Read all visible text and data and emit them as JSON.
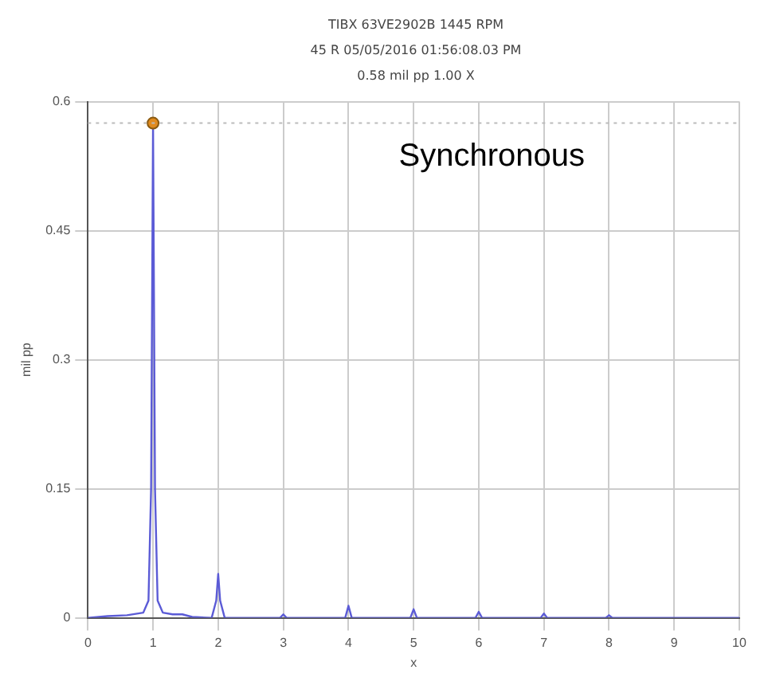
{
  "chart_data": {
    "type": "line",
    "title": "TIBX 63VE2902B  1445 RPM",
    "subtitle": "45 R  05/05/2016 01:56:08.03 PM\n0.58 mil pp 1.00 X",
    "xlabel": "x",
    "ylabel": "mil pp",
    "annotations": [
      "Synchronous"
    ],
    "series": [
      {
        "color": "#5b5bd6",
        "marker": "none",
        "x": [
          0,
          0.3,
          0.6,
          0.85,
          0.93,
          0.97,
          1,
          1.03,
          1.07,
          1.15,
          1.3,
          1.45,
          1.6,
          1.9,
          1.97,
          2,
          2.03,
          2.1,
          2.95,
          3,
          3.05,
          3.95,
          4,
          4.05,
          4.95,
          5,
          5.05,
          5.95,
          6,
          6.05,
          6.95,
          7,
          7.05,
          7.95,
          8,
          8.05,
          10
        ],
        "values": [
          0,
          0.002,
          0.003,
          0.006,
          0.02,
          0.15,
          0.575,
          0.15,
          0.02,
          0.006,
          0.004,
          0.004,
          0.001,
          0,
          0.02,
          0.051,
          0.02,
          0,
          0,
          0.004,
          0,
          0,
          0.014,
          0,
          0,
          0.01,
          0,
          0,
          0.007,
          0,
          0,
          0.005,
          0,
          0,
          0.003,
          0,
          0
        ]
      },
      {
        "type": "scatter",
        "color": "#e08a1e",
        "marker": "circle",
        "x": [
          1
        ],
        "values": [
          0.575
        ]
      }
    ],
    "ref_lines": [
      {
        "axis": "y",
        "value": 0.575,
        "color": "#bbbbbb",
        "line_style": "dotted"
      }
    ],
    "xlim": [
      0,
      10
    ],
    "xticks": [
      0,
      1,
      2,
      3,
      4,
      5,
      6,
      7,
      8,
      9,
      10
    ],
    "ylim": [
      0,
      0.6
    ],
    "yticks": [
      0,
      0.15,
      0.3,
      0.45,
      0.6
    ],
    "grid": true,
    "legend": false,
    "line_style": "solid"
  }
}
